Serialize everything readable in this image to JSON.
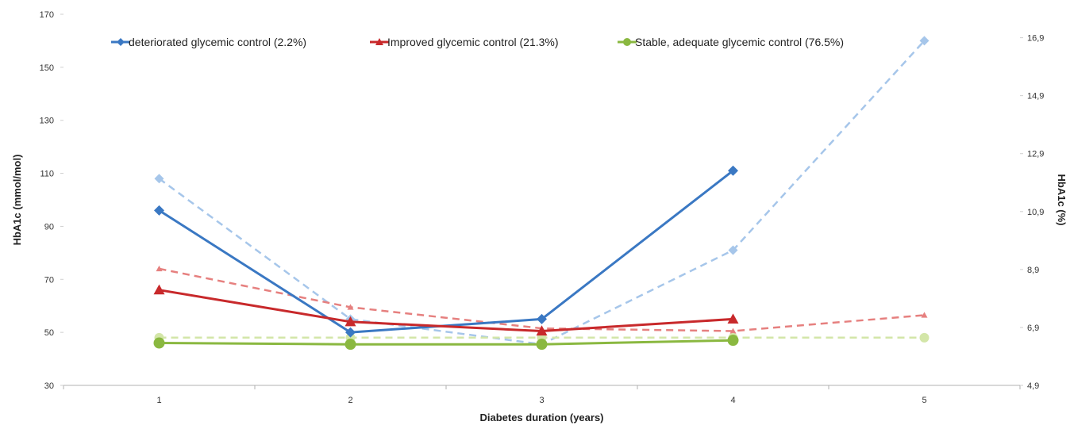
{
  "chart_data": {
    "type": "line",
    "title": "",
    "xlabel": "Diabetes duration (years)",
    "ylabel": "HbA1c (mmol/mol)",
    "y2label": "HbA1c (%)",
    "x": [
      1,
      2,
      3,
      4,
      5
    ],
    "x_ticks": [
      "1",
      "2",
      "3",
      "4",
      "5"
    ],
    "xlim": [
      0.5,
      5.5
    ],
    "ylim": [
      30,
      170
    ],
    "y_ticks": [
      "30",
      "50",
      "70",
      "90",
      "110",
      "130",
      "150",
      "170"
    ],
    "y2lim": [
      4.9,
      17.71
    ],
    "y2_ticks": [
      "4,9",
      "6,9",
      "8,9",
      "10,9",
      "12,9",
      "14,9",
      "16,9"
    ],
    "grid": false,
    "legend_position": "top",
    "series": [
      {
        "name": "deteriorated glycemic control (2.2%)",
        "color": "#3a78c3",
        "marker": "diamond",
        "line_style": "solid",
        "values": [
          96,
          50,
          55,
          111,
          null
        ]
      },
      {
        "name": "Improved glycemic control (21.3%)",
        "color": "#c8292b",
        "marker": "triangle",
        "line_style": "solid",
        "values": [
          66,
          54,
          50.5,
          55,
          null
        ]
      },
      {
        "name": "Stable, adequate glycemic control (76.5%)",
        "color": "#8ab840",
        "marker": "circle",
        "line_style": "solid",
        "values": [
          46,
          45.5,
          45.5,
          47,
          null
        ]
      },
      {
        "color": "#a6c6ea",
        "marker": "diamond",
        "line_style": "dashed",
        "in_legend": false,
        "values": [
          108,
          55,
          45.5,
          81,
          160
        ]
      },
      {
        "color": "#e6807f",
        "marker": "triangle",
        "line_style": "dashed",
        "in_legend": false,
        "values": [
          74,
          59.5,
          51.5,
          50.5,
          56.5
        ]
      },
      {
        "color": "#d3e6a8",
        "marker": "circle",
        "line_style": "dashed",
        "in_legend": false,
        "values": [
          48,
          48,
          48,
          48,
          48
        ]
      }
    ]
  }
}
